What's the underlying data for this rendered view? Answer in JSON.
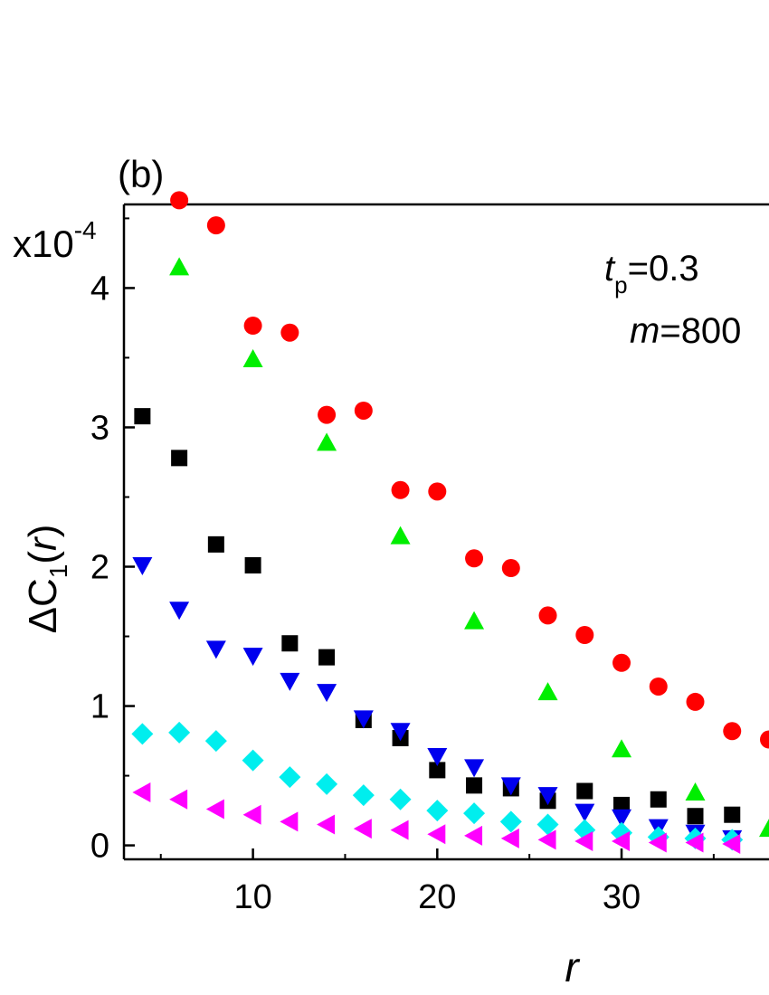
{
  "chart_data": {
    "type": "scatter",
    "panel_label": "(b)",
    "xlabel": "r",
    "ylabel": {
      "prefix": "ΔC",
      "subscript": "1",
      "open": "(",
      "var": "r",
      "close": ")"
    },
    "multiplier": {
      "base": "x10",
      "exp": "-4"
    },
    "annotations": [
      {
        "var": "t",
        "sub": "p",
        "rest": "=0.3"
      },
      {
        "var": "m",
        "rest": "=800"
      }
    ],
    "xlim": [
      3,
      38
    ],
    "ylim": [
      -0.1,
      4.6
    ],
    "x_ticks": [
      10,
      20,
      30
    ],
    "y_ticks": [
      0,
      1,
      2,
      3,
      4
    ],
    "grid": false,
    "series": [
      {
        "marker": "circle",
        "color": "#ff0000",
        "points": [
          [
            6,
            4.63
          ],
          [
            8,
            4.45
          ],
          [
            10,
            3.73
          ],
          [
            12,
            3.68
          ],
          [
            14,
            3.09
          ],
          [
            16,
            3.12
          ],
          [
            18,
            2.55
          ],
          [
            20,
            2.54
          ],
          [
            22,
            2.06
          ],
          [
            24,
            1.99
          ],
          [
            26,
            1.65
          ],
          [
            28,
            1.51
          ],
          [
            30,
            1.31
          ],
          [
            32,
            1.14
          ],
          [
            34,
            1.03
          ],
          [
            36,
            0.82
          ],
          [
            38,
            0.76
          ]
        ]
      },
      {
        "marker": "triangle-up",
        "color": "#00ee00",
        "points": [
          [
            6,
            4.15
          ],
          [
            10,
            3.49
          ],
          [
            14,
            2.89
          ],
          [
            18,
            2.22
          ],
          [
            22,
            1.61
          ],
          [
            26,
            1.1
          ],
          [
            30,
            0.69
          ],
          [
            34,
            0.38
          ],
          [
            38,
            0.12
          ]
        ]
      },
      {
        "marker": "square",
        "color": "#000000",
        "points": [
          [
            4,
            3.08
          ],
          [
            6,
            2.78
          ],
          [
            8,
            2.16
          ],
          [
            10,
            2.01
          ],
          [
            12,
            1.45
          ],
          [
            14,
            1.35
          ],
          [
            16,
            0.9
          ],
          [
            18,
            0.77
          ],
          [
            20,
            0.54
          ],
          [
            22,
            0.43
          ],
          [
            24,
            0.41
          ],
          [
            26,
            0.32
          ],
          [
            28,
            0.39
          ],
          [
            30,
            0.29
          ],
          [
            32,
            0.33
          ],
          [
            34,
            0.21
          ],
          [
            36,
            0.22
          ]
        ]
      },
      {
        "marker": "triangle-down",
        "color": "#0000ee",
        "points": [
          [
            4,
            2.01
          ],
          [
            6,
            1.69
          ],
          [
            8,
            1.41
          ],
          [
            10,
            1.36
          ],
          [
            12,
            1.18
          ],
          [
            14,
            1.1
          ],
          [
            16,
            0.91
          ],
          [
            18,
            0.82
          ],
          [
            20,
            0.64
          ],
          [
            22,
            0.56
          ],
          [
            24,
            0.43
          ],
          [
            26,
            0.36
          ],
          [
            28,
            0.24
          ],
          [
            30,
            0.2
          ],
          [
            32,
            0.13
          ],
          [
            34,
            0.09
          ],
          [
            36,
            0.05
          ]
        ]
      },
      {
        "marker": "diamond",
        "color": "#00eeee",
        "points": [
          [
            4,
            0.8
          ],
          [
            6,
            0.81
          ],
          [
            8,
            0.75
          ],
          [
            10,
            0.61
          ],
          [
            12,
            0.49
          ],
          [
            14,
            0.44
          ],
          [
            16,
            0.36
          ],
          [
            18,
            0.33
          ],
          [
            20,
            0.25
          ],
          [
            22,
            0.23
          ],
          [
            24,
            0.17
          ],
          [
            26,
            0.15
          ],
          [
            28,
            0.11
          ],
          [
            30,
            0.09
          ],
          [
            32,
            0.06
          ],
          [
            34,
            0.05
          ],
          [
            36,
            0.04
          ]
        ]
      },
      {
        "marker": "triangle-left",
        "color": "#ff00ff",
        "points": [
          [
            4,
            0.38
          ],
          [
            6,
            0.33
          ],
          [
            8,
            0.26
          ],
          [
            10,
            0.22
          ],
          [
            12,
            0.17
          ],
          [
            14,
            0.15
          ],
          [
            16,
            0.12
          ],
          [
            18,
            0.11
          ],
          [
            20,
            0.08
          ],
          [
            22,
            0.07
          ],
          [
            24,
            0.05
          ],
          [
            26,
            0.04
          ],
          [
            28,
            0.03
          ],
          [
            30,
            0.03
          ],
          [
            32,
            0.02
          ],
          [
            34,
            0.02
          ],
          [
            36,
            0.01
          ]
        ]
      }
    ]
  }
}
